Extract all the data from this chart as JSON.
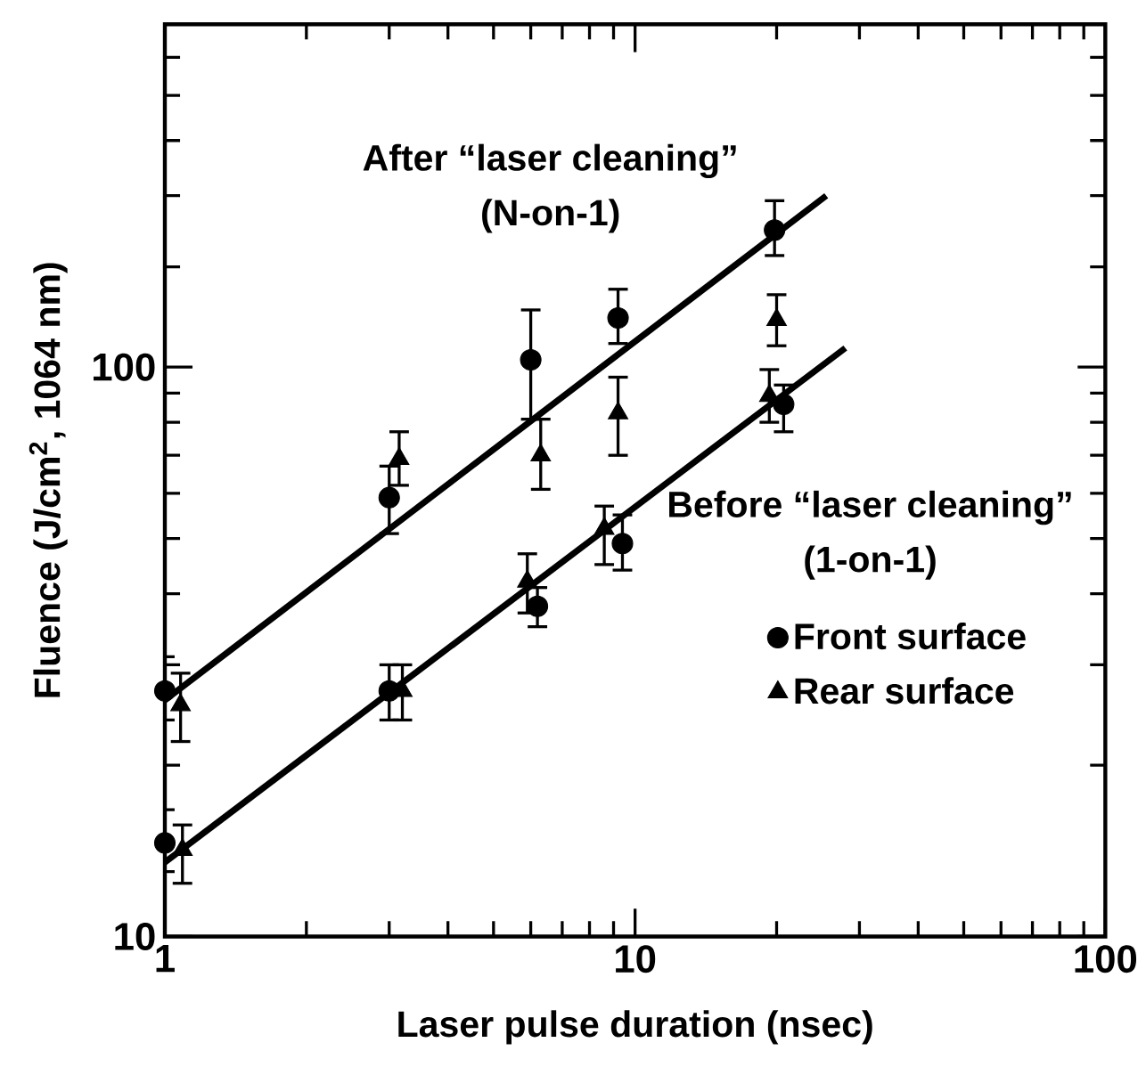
{
  "chart_data": {
    "type": "scatter",
    "xlabel": "Laser pulse duration (nsec)",
    "ylabel": "Fluence (J/cm$^{2}$, 1064 nm)",
    "log": "xy",
    "xlim": [
      1,
      100
    ],
    "ylim": [
      10,
      400
    ],
    "xticks": [
      1,
      {
        "value": 2,
        "label": null
      },
      {
        "value": 3,
        "label": null
      },
      {
        "value": 4,
        "label": null
      },
      {
        "value": 5,
        "label": null
      },
      {
        "value": 6,
        "label": null
      },
      {
        "value": 7,
        "label": null
      },
      {
        "value": 8,
        "label": null
      },
      {
        "value": 9,
        "label": null
      },
      10,
      {
        "value": 20,
        "label": null
      },
      {
        "value": 30,
        "label": null
      },
      {
        "value": 40,
        "label": null
      },
      {
        "value": 50,
        "label": null
      },
      {
        "value": 60,
        "label": null
      },
      {
        "value": 70,
        "label": null
      },
      {
        "value": 80,
        "label": null
      },
      {
        "value": 90,
        "label": null
      },
      100
    ],
    "yticks": [
      10,
      {
        "value": 20,
        "label": null
      },
      {
        "value": 30,
        "label": null
      },
      {
        "value": 40,
        "label": null
      },
      {
        "value": 50,
        "label": null
      },
      {
        "value": 60,
        "label": null
      },
      {
        "value": 70,
        "label": null
      },
      {
        "value": 80,
        "label": null
      },
      {
        "value": 90,
        "label": null
      },
      100,
      {
        "value": 150,
        "label": null
      },
      {
        "value": 200,
        "label": null
      },
      {
        "value": 250,
        "label": null
      },
      {
        "value": 300,
        "label": null
      },
      {
        "value": 350,
        "label": null
      }
    ],
    "legend": "bottom right",
    "series": [
      {
        "name": "Front surface",
        "marker": "circle",
        "color": "#000000",
        "x": [
          1,
          1,
          3,
          3,
          6.0,
          6.2,
          9.2,
          9.4,
          19.8,
          20.7
        ],
        "values": [
          27,
          14.6,
          59,
          27,
          103,
          38,
          122,
          49,
          174,
          86
        ],
        "errors": [
          [
            24,
            31
          ],
          [
            13,
            16.7
          ],
          [
            51,
            67
          ],
          [
            24,
            30
          ],
          [
            81,
            126
          ],
          [
            35,
            41
          ],
          [
            110,
            137
          ],
          [
            44,
            55
          ],
          [
            157,
            196
          ],
          [
            77,
            93
          ]
        ]
      },
      {
        "name": "Rear surface",
        "marker": "triangle",
        "color": "#000000",
        "x": [
          1.08,
          1.09,
          3.15,
          3.2,
          6.3,
          5.9,
          9.2,
          8.6,
          20,
          19.3
        ],
        "values": [
          25.5,
          14.2,
          69,
          27,
          70,
          42,
          83,
          52,
          121,
          89
        ],
        "errors": [
          [
            22,
            29
          ],
          [
            12.4,
            15.7
          ],
          [
            62,
            77
          ],
          [
            24,
            30
          ],
          [
            61,
            81
          ],
          [
            37,
            47
          ],
          [
            70,
            96
          ],
          [
            45,
            57
          ],
          [
            109,
            134
          ],
          [
            80,
            99
          ]
        ]
      },
      {
        "type": "line",
        "color": "#000000",
        "x": [
          1,
          25.5
        ],
        "values": [
          26,
          200
        ]
      },
      {
        "type": "line",
        "color": "#000000",
        "x": [
          1,
          28
        ],
        "values": [
          13.5,
          108
        ]
      }
    ],
    "annotations": [
      "After “laser cleaning”",
      "(N-on-1)",
      "Before “laser cleaning”",
      "(1-on-1)"
    ]
  }
}
